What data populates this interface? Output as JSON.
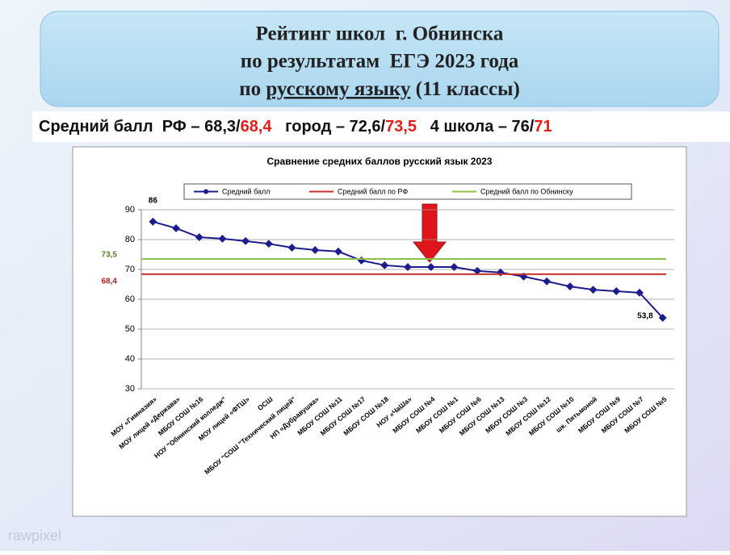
{
  "header": {
    "line1": "Рейтинг школ  г. Обнинска",
    "line2": "по результатам  ЕГЭ 2023 года",
    "line3_before": "по ",
    "line3_underlined": "русскому языку",
    "line3_after": " (11 классы)"
  },
  "stats": [
    {
      "text": "Средний балл  РФ – 68,3/",
      "color": "#111111"
    },
    {
      "text": "68,4",
      "color": "#e0201c"
    },
    {
      "text": "   город – 72,6/",
      "color": "#111111"
    },
    {
      "text": "73,5",
      "color": "#e0201c"
    },
    {
      "text": "   4 школа – 76/",
      "color": "#111111"
    },
    {
      "text": "71",
      "color": "#e0201c"
    }
  ],
  "watermark": "rawpixel",
  "chart_data": {
    "type": "line",
    "title": "Сравнение средних баллов русский язык 2023",
    "categories": [
      "МОУ «Гимназия»",
      "МОУ лицей «Держава»",
      "МБОУ СОШ №16",
      "НОУ \"Обнинский колледж\"",
      "МОУ лицей «ФТШ»",
      "ОСШ",
      "МБОУ \"СОШ \"Технический лицей\"",
      "НП «Дубравушка»",
      "МБОУ СОШ №11",
      "МБОУ СОШ №17",
      "МБОУ СОШ №18",
      "НОУ «ЧаШа»",
      "МБОУ СОШ №4",
      "МБОУ СОШ №1",
      "МБОУ СОШ №6",
      "МБОУ СОШ №13",
      "МБОУ СОШ №3",
      "МБОУ СОШ №12",
      "МБОУ СОШ №10",
      "шк. Пятьмоной",
      "МБОУ СОШ №9",
      "МБОУ СОШ №7",
      "МБОУ СОШ №5"
    ],
    "series": [
      {
        "name": "Средний балл",
        "color": "#1c1c8c",
        "values": [
          86,
          83.8,
          80.8,
          80.3,
          79.5,
          78.6,
          77.3,
          76.5,
          76,
          73,
          71.4,
          70.8,
          70.8,
          70.8,
          69.5,
          69,
          67.6,
          66,
          64.3,
          63.2,
          62.7,
          62.2,
          53.8
        ],
        "value_labels": [
          "86",
          null,
          null,
          null,
          null,
          null,
          null,
          null,
          null,
          null,
          null,
          null,
          null,
          null,
          null,
          null,
          null,
          null,
          null,
          null,
          null,
          null,
          "53,8"
        ]
      },
      {
        "name": "Средний балл по РФ",
        "color": "#c8312c",
        "value": 68.4,
        "value_label": "68,4"
      },
      {
        "name": "Средний балл по Обнинску",
        "color": "#8cc04a",
        "value": 73.5,
        "value_label": "73,5"
      }
    ],
    "ylim": [
      30,
      90
    ],
    "yticks": [
      30,
      40,
      50,
      60,
      70,
      80,
      90
    ],
    "grid": true
  }
}
